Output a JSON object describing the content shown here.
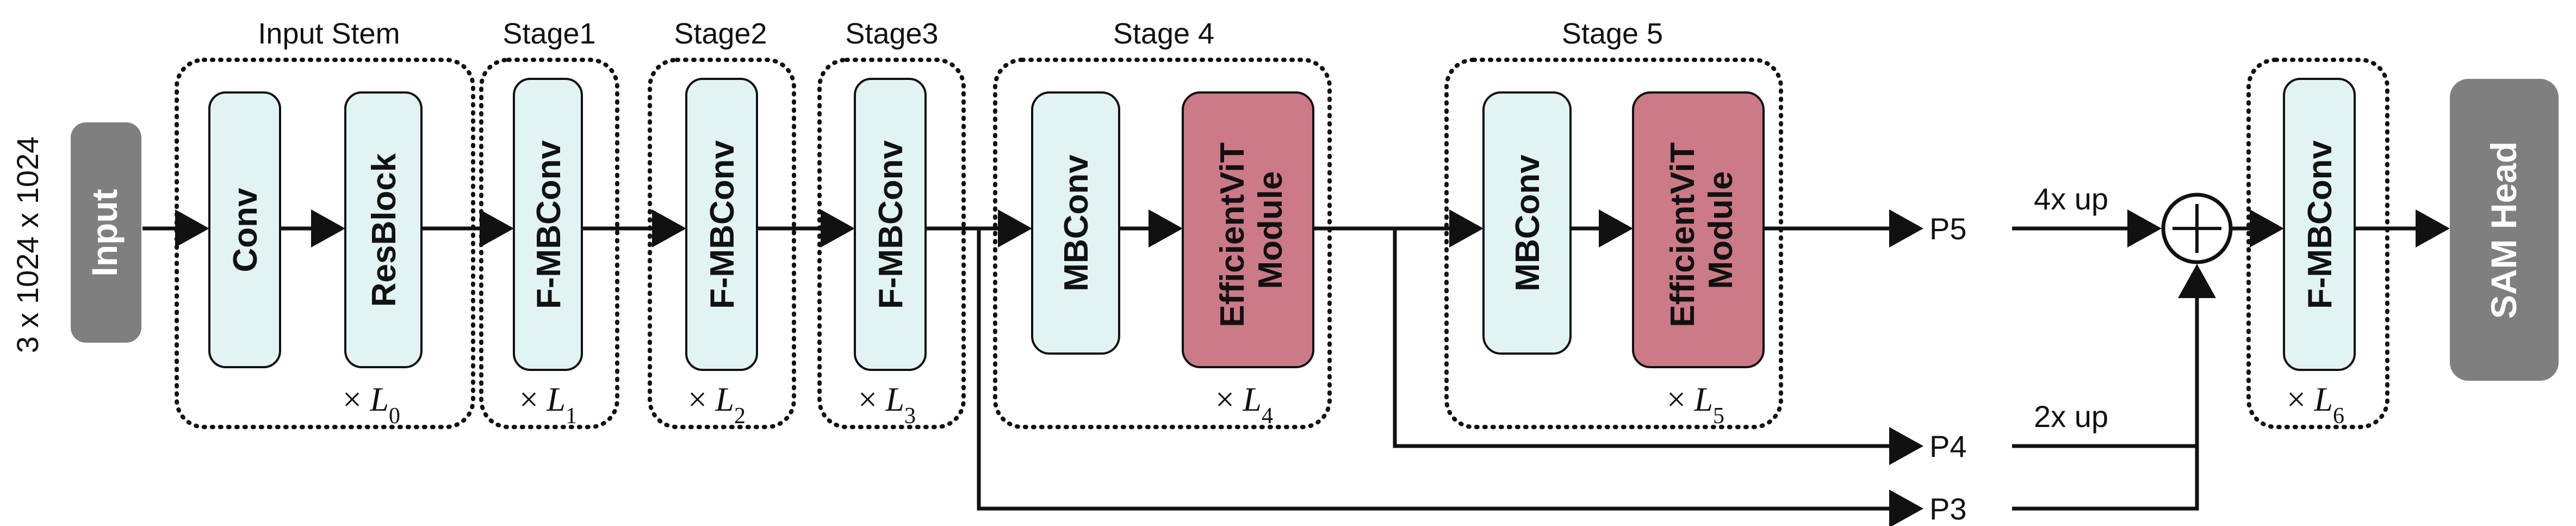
{
  "input": {
    "label": "Input",
    "shape": "3 x 1024 x 1024"
  },
  "stages": {
    "stem": {
      "title": "Input Stem",
      "repeat": "L",
      "sub": "0"
    },
    "s1": {
      "title": "Stage1",
      "repeat": "L",
      "sub": "1"
    },
    "s2": {
      "title": "Stage2",
      "repeat": "L",
      "sub": "2"
    },
    "s3": {
      "title": "Stage3",
      "repeat": "L",
      "sub": "3"
    },
    "s4": {
      "title": "Stage 4",
      "repeat": "L",
      "sub": "4"
    },
    "s5": {
      "title": "Stage 5",
      "repeat": "L",
      "sub": "5"
    },
    "head": {
      "repeat": "L",
      "sub": "6"
    }
  },
  "blocks": {
    "conv": "Conv",
    "resblock": "ResBlock",
    "fmbconv": "F-MBConv",
    "mbconv": "MBConv",
    "evit_line1": "EfficientViT",
    "evit_line2": "Module"
  },
  "outputs": {
    "p5": "P5",
    "p4": "P4",
    "p3": "P3",
    "up4": "4x up",
    "up2": "2x up"
  },
  "head_label": "SAM Head",
  "times_symbol": "×",
  "colors": {
    "teal": "#e2f3f3",
    "red": "#cc7a87",
    "grey": "#7f7f7f"
  }
}
